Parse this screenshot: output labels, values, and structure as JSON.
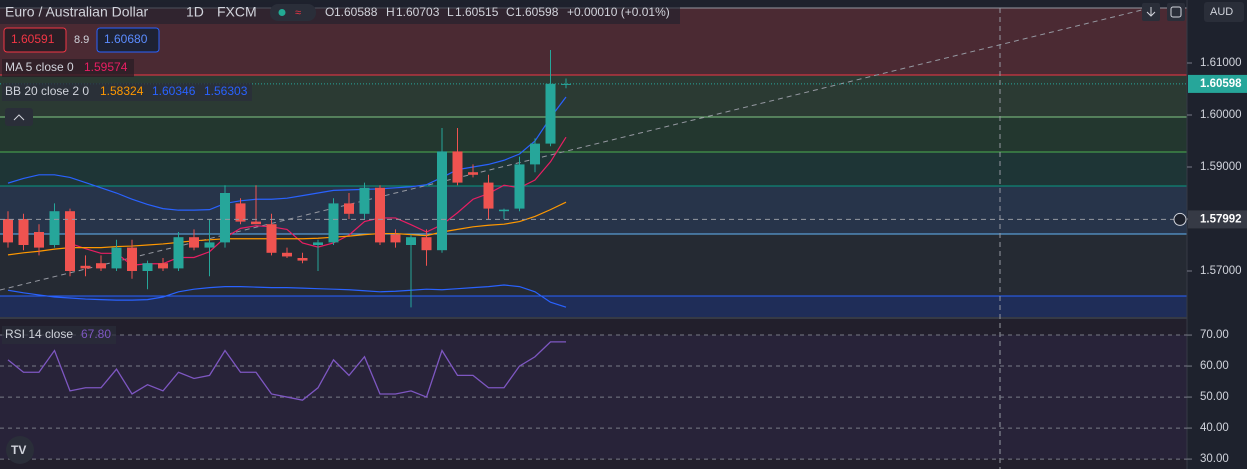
{
  "header": {
    "symbol": "Euro / Australian Dollar",
    "interval": "1D",
    "source": "FXCM",
    "o": "O",
    "h": "H",
    "l": "L",
    "c": "C",
    "change": "+0.00010 (+0.01%)",
    "sell": "1.60591",
    "spread": "8.9",
    "buy": "1.60680",
    "currency": "AUD"
  },
  "chart_data": [
    {
      "type": "candlestick",
      "open": [
        1.58,
        1.58,
        1.5775,
        1.575,
        1.5815,
        1.571,
        1.5715,
        1.5705,
        1.5745,
        1.57,
        1.5715,
        1.5705,
        1.5765,
        1.5745,
        1.5755,
        1.583,
        1.5795,
        1.579,
        1.5735,
        1.5725,
        1.575,
        1.5755,
        1.583,
        1.581,
        1.586,
        1.577,
        1.575,
        1.5765,
        1.574,
        1.593,
        1.589,
        1.587,
        1.5815,
        1.582,
        1.5905,
        1.5945,
        1.60588
      ],
      "high": [
        1.5815,
        1.581,
        1.579,
        1.583,
        1.582,
        1.573,
        1.573,
        1.576,
        1.576,
        1.572,
        1.5725,
        1.5775,
        1.578,
        1.58,
        1.5865,
        1.584,
        1.5865,
        1.581,
        1.5745,
        1.5735,
        1.576,
        1.584,
        1.585,
        1.587,
        1.5865,
        1.578,
        1.577,
        1.578,
        1.5975,
        1.5975,
        1.5905,
        1.5885,
        1.582,
        1.592,
        1.5955,
        1.6125,
        1.60703
      ],
      "low": [
        1.5745,
        1.574,
        1.573,
        1.5745,
        1.569,
        1.569,
        1.57,
        1.57,
        1.5685,
        1.5665,
        1.57,
        1.57,
        1.574,
        1.569,
        1.5745,
        1.579,
        1.579,
        1.573,
        1.5725,
        1.5715,
        1.57,
        1.575,
        1.58,
        1.58,
        1.575,
        1.5745,
        1.563,
        1.571,
        1.5735,
        1.5865,
        1.588,
        1.58,
        1.58,
        1.5815,
        1.589,
        1.594,
        1.60515
      ],
      "close": [
        1.5755,
        1.575,
        1.5745,
        1.5815,
        1.57,
        1.5705,
        1.5705,
        1.5745,
        1.57,
        1.5715,
        1.5705,
        1.5765,
        1.5745,
        1.5755,
        1.585,
        1.5795,
        1.579,
        1.5735,
        1.5728,
        1.572,
        1.5755,
        1.583,
        1.581,
        1.586,
        1.5755,
        1.5755,
        1.5765,
        1.574,
        1.593,
        1.587,
        1.5885,
        1.582,
        1.5818,
        1.5905,
        1.5945,
        1.606,
        1.60598
      ],
      "up_color": "#26a69a",
      "down_color": "#ef5350",
      "series": [
        {
          "name": "MA 5 close 0",
          "color": "#e91e63",
          "values": [
            null,
            null,
            null,
            null,
            1.5753,
            1.5743,
            1.5734,
            1.5734,
            1.5711,
            1.5714,
            1.5714,
            1.5726,
            1.5726,
            1.5737,
            1.5764,
            1.5782,
            1.5787,
            1.5785,
            1.578,
            1.5754,
            1.5746,
            1.5754,
            1.5769,
            1.5795,
            1.5802,
            1.5802,
            1.5789,
            1.5775,
            1.5789,
            1.5812,
            1.5838,
            1.5849,
            1.5865,
            1.586,
            1.5875,
            1.591,
            1.59574
          ]
        },
        {
          "name": "BB 20 close 2 0",
          "color": "#ff9800",
          "values": [
            1.5731,
            1.5735,
            1.5738,
            1.5742,
            1.5745,
            1.5745,
            1.5745,
            1.5747,
            1.5748,
            1.575,
            1.5752,
            1.5755,
            1.5758,
            1.576,
            1.5762,
            1.5762,
            1.5762,
            1.5762,
            1.5762,
            1.5762,
            1.5763,
            1.5765,
            1.5767,
            1.577,
            1.5772,
            1.5772,
            1.577,
            1.5768,
            1.5775,
            1.578,
            1.5785,
            1.5788,
            1.579,
            1.5795,
            1.5805,
            1.5818,
            1.58324
          ]
        },
        {
          "color": "#2962ff",
          "values": [
            1.5869,
            1.5878,
            1.5885,
            1.5885,
            1.588,
            1.587,
            1.586,
            1.585,
            1.5838,
            1.5828,
            1.582,
            1.5817,
            1.5817,
            1.5818,
            1.583,
            1.5835,
            1.5838,
            1.5838,
            1.584,
            1.5845,
            1.585,
            1.5855,
            1.5856,
            1.5857,
            1.5858,
            1.586,
            1.5862,
            1.5866,
            1.588,
            1.5895,
            1.59,
            1.5905,
            1.5913,
            1.5925,
            1.595,
            1.5995,
            1.60346
          ]
        },
        {
          "color": "#2962ff",
          "values": [
            1.5663,
            1.5658,
            1.5654,
            1.565,
            1.5648,
            1.5646,
            1.5645,
            1.5644,
            1.5644,
            1.5645,
            1.565,
            1.566,
            1.5665,
            1.5668,
            1.567,
            1.567,
            1.5669,
            1.5668,
            1.5668,
            1.5667,
            1.5666,
            1.5665,
            1.5664,
            1.5662,
            1.566,
            1.5661,
            1.5663,
            1.5665,
            1.5664,
            1.5666,
            1.5668,
            1.567,
            1.5673,
            1.567,
            1.566,
            1.564,
            1.56303
          ]
        }
      ],
      "ylim": [
        1.56096,
        1.62058
      ],
      "yticks": [
        {
          "value": 1.61,
          "label": "1.61000"
        },
        {
          "value": 1.6,
          "label": "1.60000"
        },
        {
          "value": 1.59,
          "label": "1.59000"
        },
        {
          "value": 1.58,
          "label": "1.58000"
        },
        {
          "value": 1.57,
          "label": "1.57000"
        }
      ],
      "crosshair": 1.57992
    },
    {
      "type": "line",
      "series": [
        {
          "name": "RSI 14 close",
          "color": "#7e57c2",
          "values": [
            62,
            58,
            58,
            65,
            52,
            53,
            53,
            59,
            51,
            54,
            52,
            58,
            56,
            57,
            65,
            58,
            58,
            51,
            50,
            49,
            53,
            62,
            57,
            63,
            51,
            51,
            52,
            50,
            65,
            57,
            57,
            53,
            53,
            60,
            63,
            67.8,
            67.8
          ],
          "value_labels": [
            null,
            null,
            null,
            null,
            null,
            null,
            null,
            null,
            null,
            null,
            null,
            null,
            null,
            null,
            null,
            null,
            null,
            null,
            null,
            null,
            null,
            null,
            null,
            null,
            null,
            null,
            null,
            null,
            null,
            null,
            null,
            null,
            null,
            null,
            null,
            null,
            "67.80"
          ]
        }
      ],
      "ylim": [
        26.8,
        75.5
      ],
      "yticks": [
        {
          "value": 70,
          "label": "70.00"
        },
        {
          "value": 60,
          "label": "60.00"
        },
        {
          "value": 50,
          "label": "50.00"
        },
        {
          "value": 40,
          "label": "40.00"
        },
        {
          "value": 30,
          "label": "30.00"
        }
      ]
    }
  ]
}
